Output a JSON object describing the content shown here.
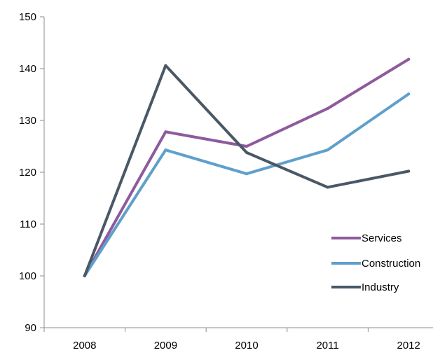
{
  "chart_data": {
    "type": "line",
    "title": "",
    "xlabel": "",
    "ylabel": "",
    "categories": [
      "2008",
      "2009",
      "2010",
      "2011",
      "2012"
    ],
    "ylim": [
      90,
      150
    ],
    "yticks": [
      90,
      100,
      110,
      120,
      130,
      140,
      150
    ],
    "grid": false,
    "legend_position": "right",
    "series": [
      {
        "name": "Services",
        "color": "#8E5A9D",
        "values": [
          100,
          127.8,
          125.0,
          132.3,
          141.8
        ]
      },
      {
        "name": "Construction",
        "color": "#5FA0CB",
        "values": [
          100,
          124.3,
          119.7,
          124.3,
          135.1
        ]
      },
      {
        "name": "Industry",
        "color": "#4A5866",
        "values": [
          100,
          140.6,
          123.8,
          117.1,
          120.2
        ]
      }
    ]
  }
}
